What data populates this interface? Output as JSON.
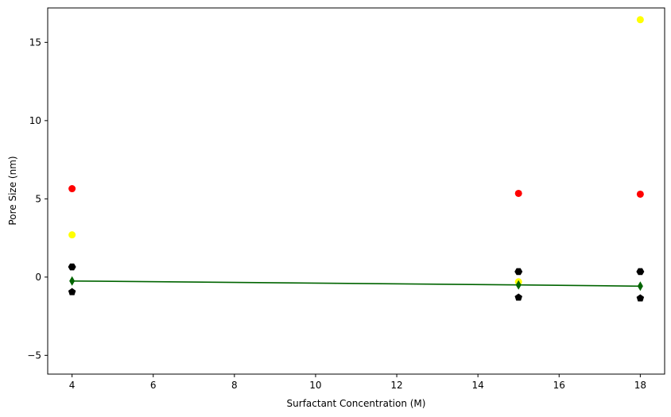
{
  "chart_data": {
    "type": "scatter",
    "title": "",
    "xlabel": "Surfactant Concentration (M)",
    "ylabel": "Pore Size (nm)",
    "xlim": [
      3.4,
      18.6
    ],
    "ylim": [
      -6.2,
      17.2
    ],
    "xticks": [
      4,
      6,
      8,
      10,
      12,
      14,
      16,
      18
    ],
    "yticks": [
      -5,
      0,
      5,
      10,
      15
    ],
    "grid": false,
    "legend": "none",
    "series": [
      {
        "kind": "scatter",
        "marker": "circle",
        "color": "#ff0000",
        "points": [
          [
            4,
            5.65
          ],
          [
            15,
            5.35
          ],
          [
            18,
            5.3
          ]
        ]
      },
      {
        "kind": "scatter",
        "marker": "circle",
        "color": "#ffff00",
        "points": [
          [
            4,
            2.7
          ],
          [
            15,
            -0.3
          ],
          [
            18,
            16.45
          ]
        ]
      },
      {
        "kind": "scatter",
        "marker": "hexagon",
        "color": "#000000",
        "points": [
          [
            4,
            0.65
          ],
          [
            15,
            0.35
          ],
          [
            18,
            0.35
          ]
        ]
      },
      {
        "kind": "scatter",
        "marker": "pentagon",
        "color": "#000000",
        "points": [
          [
            4,
            -0.95
          ],
          [
            15,
            -1.3
          ],
          [
            18,
            -1.35
          ]
        ]
      },
      {
        "kind": "line",
        "marker": "diamond",
        "color": "#006400",
        "points": [
          [
            4,
            -0.25
          ],
          [
            15,
            -0.5
          ],
          [
            18,
            -0.58
          ]
        ]
      }
    ]
  }
}
